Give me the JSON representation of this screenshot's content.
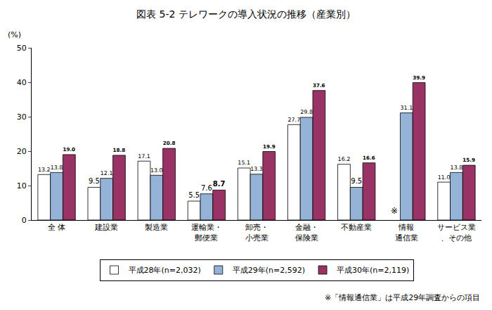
{
  "chart_data": {
    "type": "bar",
    "title": "図表 5-2 テレワークの導入状況の推移（産業別）",
    "y_label": "(%)",
    "categories": [
      "全 体",
      "建設業",
      "製造業",
      "運輸業・\n郵便業",
      "卸売・\n小売業",
      "金融・\n保険業",
      "不動産業",
      "情報\n通信業",
      "サービス業\n、その他"
    ],
    "series": [
      {
        "name": "平成28年(n=2,032)",
        "color": "#ffffff",
        "values": [
          13.2,
          9.5,
          17.1,
          5.5,
          15.1,
          27.7,
          16.2,
          null,
          11.0
        ],
        "value_labels": [
          "13.2",
          "9.5",
          "17.1",
          "5.5",
          "15.1",
          "27.7",
          "16.2",
          null,
          "11.0"
        ]
      },
      {
        "name": "平成29年(n=2,592)",
        "color": "#95b3d7",
        "values": [
          13.8,
          12.1,
          13.0,
          7.6,
          13.3,
          29.8,
          9.5,
          31.1,
          13.8
        ],
        "value_labels": [
          "13.8",
          "12.1",
          "13.0",
          "7.6",
          "13.3",
          "29.8",
          "9.5",
          "31.1",
          "13.8"
        ]
      },
      {
        "name": "平成30年(n=2,119)",
        "color": "#993366",
        "values": [
          19.0,
          18.8,
          20.8,
          8.7,
          19.9,
          37.6,
          16.6,
          39.9,
          15.9
        ],
        "value_labels": [
          "19.0",
          "18.8",
          "20.8",
          "8.7",
          "19.9",
          "37.6",
          "16.6",
          "39.9",
          "15.9"
        ]
      }
    ],
    "annotations": [
      {
        "text": "※",
        "category": "情報\n通信業",
        "series": "平成28年(n=2,032)"
      }
    ],
    "note": "※「情報通信業」は平成29年調査からの項目",
    "ylim": [
      0,
      50
    ],
    "yticks": [
      0,
      10,
      20,
      30,
      40,
      50
    ],
    "grid": false,
    "legend": "bottom",
    "data_labels": true
  }
}
